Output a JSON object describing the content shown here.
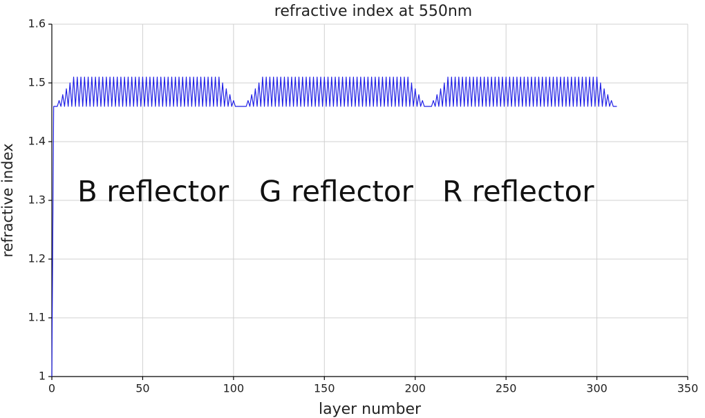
{
  "chart_data": {
    "type": "line",
    "title": "refractive index at 550nm",
    "x_label": "layer number",
    "y_label": "refractive index",
    "xlim": [
      0,
      350
    ],
    "xticks": [
      0,
      50,
      100,
      150,
      200,
      250,
      300,
      350
    ],
    "ylim": [
      1,
      1.6
    ],
    "yticks": [
      1,
      1.1,
      1.2,
      1.3,
      1.4,
      1.5,
      1.6
    ],
    "grid": true,
    "annotations": [
      "B reflector",
      "G reflector",
      "R reflector"
    ],
    "x": [
      0,
      1,
      2,
      3,
      4,
      5,
      6,
      7,
      8,
      9,
      10,
      11,
      12,
      13,
      14,
      15,
      16,
      17,
      18,
      19,
      20,
      21,
      22,
      23,
      24,
      25,
      26,
      27,
      28,
      29,
      30,
      31,
      32,
      33,
      34,
      35,
      36,
      37,
      38,
      39,
      40,
      41,
      42,
      43,
      44,
      45,
      46,
      47,
      48,
      49,
      50,
      51,
      52,
      53,
      54,
      55,
      56,
      57,
      58,
      59,
      60,
      61,
      62,
      63,
      64,
      65,
      66,
      67,
      68,
      69,
      70,
      71,
      72,
      73,
      74,
      75,
      76,
      77,
      78,
      79,
      80,
      81,
      82,
      83,
      84,
      85,
      86,
      87,
      88,
      89,
      90,
      91,
      92,
      93,
      94,
      95,
      96,
      97,
      98,
      99,
      100,
      101,
      102,
      103,
      104,
      105,
      106,
      107,
      108,
      109,
      110,
      111,
      112,
      113,
      114,
      115,
      116,
      117,
      118,
      119,
      120,
      121,
      122,
      123,
      124,
      125,
      126,
      127,
      128,
      129,
      130,
      131,
      132,
      133,
      134,
      135,
      136,
      137,
      138,
      139,
      140,
      141,
      142,
      143,
      144,
      145,
      146,
      147,
      148,
      149,
      150,
      151,
      152,
      153,
      154,
      155,
      156,
      157,
      158,
      159,
      160,
      161,
      162,
      163,
      164,
      165,
      166,
      167,
      168,
      169,
      170,
      171,
      172,
      173,
      174,
      175,
      176,
      177,
      178,
      179,
      180,
      181,
      182,
      183,
      184,
      185,
      186,
      187,
      188,
      189,
      190,
      191,
      192,
      193,
      194,
      195,
      196,
      197,
      198,
      199,
      200,
      201,
      202,
      203,
      204,
      205,
      206,
      207,
      208,
      209,
      210,
      211,
      212,
      213,
      214,
      215,
      216,
      217,
      218,
      219,
      220,
      221,
      222,
      223,
      224,
      225,
      226,
      227,
      228,
      229,
      230,
      231,
      232,
      233,
      234,
      235,
      236,
      237,
      238,
      239,
      240,
      241,
      242,
      243,
      244,
      245,
      246,
      247,
      248,
      249,
      250,
      251,
      252,
      253,
      254,
      255,
      256,
      257,
      258,
      259,
      260,
      261,
      262,
      263,
      264,
      265,
      266,
      267,
      268,
      269,
      270,
      271,
      272,
      273,
      274,
      275,
      276,
      277,
      278,
      279,
      280,
      281,
      282,
      283,
      284,
      285,
      286,
      287,
      288,
      289,
      290,
      291,
      292,
      293,
      294,
      295,
      296,
      297,
      298,
      299,
      300,
      301,
      302,
      303,
      304,
      305,
      306,
      307,
      308,
      309,
      310,
      311
    ],
    "series": [
      {
        "color": "#1f1fe6",
        "values": [
          1,
          1.46,
          1.46,
          1.46,
          1.47,
          1.46,
          1.48,
          1.46,
          1.49,
          1.46,
          1.5,
          1.46,
          1.51,
          1.46,
          1.51,
          1.46,
          1.51,
          1.46,
          1.51,
          1.46,
          1.51,
          1.46,
          1.51,
          1.46,
          1.51,
          1.46,
          1.51,
          1.46,
          1.51,
          1.46,
          1.51,
          1.46,
          1.51,
          1.46,
          1.51,
          1.46,
          1.51,
          1.46,
          1.51,
          1.46,
          1.51,
          1.46,
          1.51,
          1.46,
          1.51,
          1.46,
          1.51,
          1.46,
          1.51,
          1.46,
          1.51,
          1.46,
          1.51,
          1.46,
          1.51,
          1.46,
          1.51,
          1.46,
          1.51,
          1.46,
          1.51,
          1.46,
          1.51,
          1.46,
          1.51,
          1.46,
          1.51,
          1.46,
          1.51,
          1.46,
          1.51,
          1.46,
          1.51,
          1.46,
          1.51,
          1.46,
          1.51,
          1.46,
          1.51,
          1.46,
          1.51,
          1.46,
          1.51,
          1.46,
          1.51,
          1.46,
          1.51,
          1.46,
          1.51,
          1.46,
          1.51,
          1.46,
          1.51,
          1.46,
          1.5,
          1.46,
          1.49,
          1.46,
          1.48,
          1.46,
          1.47,
          1.46,
          1.46,
          1.46,
          1.46,
          1.46,
          1.46,
          1.46,
          1.47,
          1.46,
          1.48,
          1.46,
          1.49,
          1.46,
          1.5,
          1.46,
          1.51,
          1.46,
          1.51,
          1.46,
          1.51,
          1.46,
          1.51,
          1.46,
          1.51,
          1.46,
          1.51,
          1.46,
          1.51,
          1.46,
          1.51,
          1.46,
          1.51,
          1.46,
          1.51,
          1.46,
          1.51,
          1.46,
          1.51,
          1.46,
          1.51,
          1.46,
          1.51,
          1.46,
          1.51,
          1.46,
          1.51,
          1.46,
          1.51,
          1.46,
          1.51,
          1.46,
          1.51,
          1.46,
          1.51,
          1.46,
          1.51,
          1.46,
          1.51,
          1.46,
          1.51,
          1.46,
          1.51,
          1.46,
          1.51,
          1.46,
          1.51,
          1.46,
          1.51,
          1.46,
          1.51,
          1.46,
          1.51,
          1.46,
          1.51,
          1.46,
          1.51,
          1.46,
          1.51,
          1.46,
          1.51,
          1.46,
          1.51,
          1.46,
          1.51,
          1.46,
          1.51,
          1.46,
          1.51,
          1.46,
          1.51,
          1.46,
          1.51,
          1.46,
          1.51,
          1.46,
          1.51,
          1.46,
          1.5,
          1.46,
          1.49,
          1.46,
          1.48,
          1.46,
          1.47,
          1.46,
          1.46,
          1.46,
          1.46,
          1.46,
          1.47,
          1.46,
          1.48,
          1.46,
          1.49,
          1.46,
          1.5,
          1.46,
          1.51,
          1.46,
          1.51,
          1.46,
          1.51,
          1.46,
          1.51,
          1.46,
          1.51,
          1.46,
          1.51,
          1.46,
          1.51,
          1.46,
          1.51,
          1.46,
          1.51,
          1.46,
          1.51,
          1.46,
          1.51,
          1.46,
          1.51,
          1.46,
          1.51,
          1.46,
          1.51,
          1.46,
          1.51,
          1.46,
          1.51,
          1.46,
          1.51,
          1.46,
          1.51,
          1.46,
          1.51,
          1.46,
          1.51,
          1.46,
          1.51,
          1.46,
          1.51,
          1.46,
          1.51,
          1.46,
          1.51,
          1.46,
          1.51,
          1.46,
          1.51,
          1.46,
          1.51,
          1.46,
          1.51,
          1.46,
          1.51,
          1.46,
          1.51,
          1.46,
          1.51,
          1.46,
          1.51,
          1.46,
          1.51,
          1.46,
          1.51,
          1.46,
          1.51,
          1.46,
          1.51,
          1.46,
          1.51,
          1.46,
          1.51,
          1.46,
          1.51,
          1.46,
          1.51,
          1.46,
          1.51,
          1.46,
          1.51,
          1.46,
          1.5,
          1.46,
          1.49,
          1.46,
          1.48,
          1.46,
          1.47,
          1.46,
          1.46,
          1.46
        ]
      }
    ]
  }
}
